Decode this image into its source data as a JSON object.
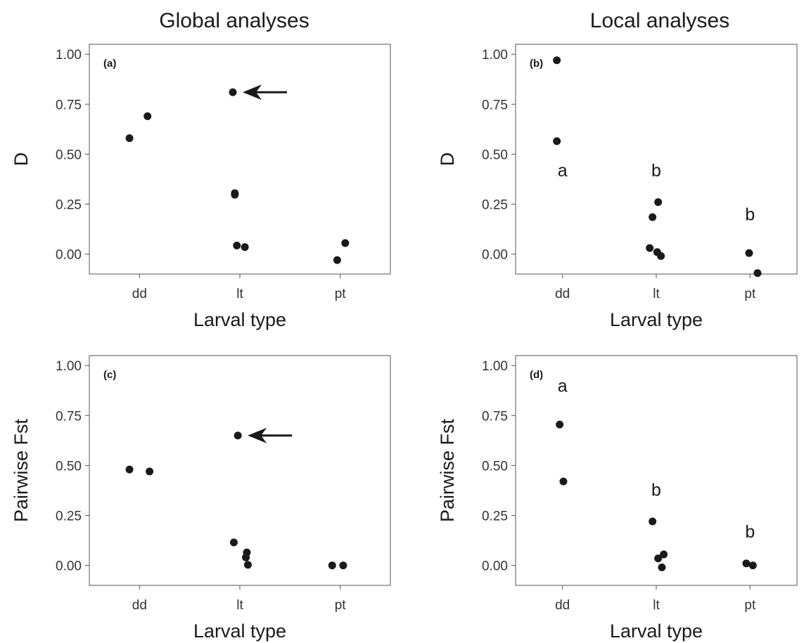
{
  "figure": {
    "column_titles": [
      "Global analyses",
      "Local analyses"
    ]
  },
  "chart_data": [
    {
      "type": "scatter",
      "panel_label": "(a)",
      "column": "Global analyses",
      "xlabel": "Larval type",
      "ylabel": "D",
      "categories": [
        "dd",
        "lt",
        "pt"
      ],
      "yticks": [
        "0.00",
        "0.25",
        "0.50",
        "0.75",
        "1.00"
      ],
      "ylim": [
        -0.1,
        1.05
      ],
      "points": [
        {
          "x": "dd",
          "jitter": -0.1,
          "y": 0.58
        },
        {
          "x": "dd",
          "jitter": 0.08,
          "y": 0.69
        },
        {
          "x": "lt",
          "jitter": -0.07,
          "y": 0.81,
          "arrow": true
        },
        {
          "x": "lt",
          "jitter": -0.05,
          "y": 0.305
        },
        {
          "x": "lt",
          "jitter": -0.05,
          "y": 0.297
        },
        {
          "x": "lt",
          "jitter": -0.03,
          "y": 0.043
        },
        {
          "x": "lt",
          "jitter": 0.05,
          "y": 0.035
        },
        {
          "x": "pt",
          "jitter": -0.03,
          "y": -0.03
        },
        {
          "x": "pt",
          "jitter": 0.05,
          "y": 0.055
        }
      ],
      "group_letters": []
    },
    {
      "type": "scatter",
      "panel_label": "(b)",
      "column": "Local analyses",
      "xlabel": "Larval type",
      "ylabel": "D",
      "categories": [
        "dd",
        "lt",
        "pt"
      ],
      "yticks": [
        "0.00",
        "0.25",
        "0.50",
        "0.75",
        "1.00"
      ],
      "ylim": [
        -0.1,
        1.05
      ],
      "points": [
        {
          "x": "dd",
          "jitter": -0.06,
          "y": 0.97
        },
        {
          "x": "dd",
          "jitter": -0.06,
          "y": 0.565
        },
        {
          "x": "lt",
          "jitter": -0.04,
          "y": 0.185
        },
        {
          "x": "lt",
          "jitter": 0.02,
          "y": 0.26
        },
        {
          "x": "lt",
          "jitter": -0.07,
          "y": 0.03
        },
        {
          "x": "lt",
          "jitter": 0.01,
          "y": 0.01
        },
        {
          "x": "lt",
          "jitter": 0.05,
          "y": -0.01
        },
        {
          "x": "pt",
          "jitter": -0.01,
          "y": 0.005
        },
        {
          "x": "pt",
          "jitter": 0.08,
          "y": -0.095
        }
      ],
      "group_letters": [
        {
          "x": "dd",
          "text": "a",
          "y": 0.42
        },
        {
          "x": "lt",
          "text": "b",
          "y": 0.42
        },
        {
          "x": "pt",
          "text": "b",
          "y": 0.2
        }
      ]
    },
    {
      "type": "scatter",
      "panel_label": "(c)",
      "column": "Global analyses",
      "xlabel": "Larval type",
      "ylabel": "Pairwise Fst",
      "categories": [
        "dd",
        "lt",
        "pt"
      ],
      "yticks": [
        "0.00",
        "0.25",
        "0.50",
        "0.75",
        "1.00"
      ],
      "ylim": [
        -0.1,
        1.05
      ],
      "points": [
        {
          "x": "dd",
          "jitter": -0.1,
          "y": 0.48
        },
        {
          "x": "dd",
          "jitter": 0.1,
          "y": 0.47
        },
        {
          "x": "lt",
          "jitter": -0.02,
          "y": 0.65,
          "arrow": true
        },
        {
          "x": "lt",
          "jitter": -0.06,
          "y": 0.115
        },
        {
          "x": "lt",
          "jitter": 0.07,
          "y": 0.065
        },
        {
          "x": "lt",
          "jitter": 0.06,
          "y": 0.04
        },
        {
          "x": "lt",
          "jitter": 0.08,
          "y": 0.003
        },
        {
          "x": "pt",
          "jitter": -0.08,
          "y": 0.0
        },
        {
          "x": "pt",
          "jitter": 0.03,
          "y": 0.0
        }
      ],
      "group_letters": []
    },
    {
      "type": "scatter",
      "panel_label": "(d)",
      "column": "Local analyses",
      "xlabel": "Larval type",
      "ylabel": "Pairwise Fst",
      "categories": [
        "dd",
        "lt",
        "pt"
      ],
      "yticks": [
        "0.00",
        "0.25",
        "0.50",
        "0.75",
        "1.00"
      ],
      "ylim": [
        -0.1,
        1.05
      ],
      "points": [
        {
          "x": "dd",
          "jitter": -0.03,
          "y": 0.705
        },
        {
          "x": "dd",
          "jitter": 0.01,
          "y": 0.42
        },
        {
          "x": "lt",
          "jitter": -0.04,
          "y": 0.22
        },
        {
          "x": "lt",
          "jitter": 0.02,
          "y": 0.035
        },
        {
          "x": "lt",
          "jitter": 0.08,
          "y": 0.055
        },
        {
          "x": "lt",
          "jitter": 0.06,
          "y": -0.01
        },
        {
          "x": "pt",
          "jitter": -0.04,
          "y": 0.01
        },
        {
          "x": "pt",
          "jitter": 0.03,
          "y": 0.0
        }
      ],
      "group_letters": [
        {
          "x": "dd",
          "text": "a",
          "y": 0.9
        },
        {
          "x": "lt",
          "text": "b",
          "y": 0.38
        },
        {
          "x": "pt",
          "text": "b",
          "y": 0.17
        }
      ]
    }
  ]
}
